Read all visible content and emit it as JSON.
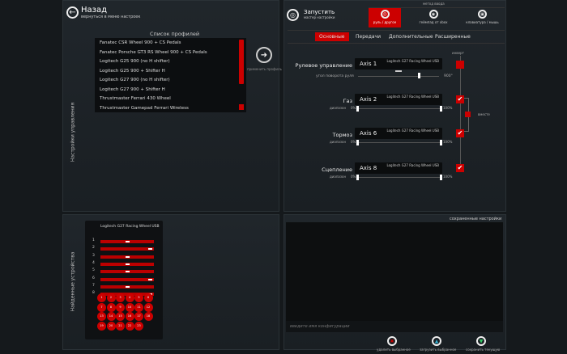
{
  "back": {
    "title": "Назад",
    "subtitle": "вернуться в меню настроек"
  },
  "profiles": {
    "title": "Список профилей",
    "items": [
      "Fanatec CSR Wheel 900 + CS Pedals",
      "Fanatec Porsche GT3 RS Wheel 900 + CS Pedals",
      "Logitech G25 900 (no H shifter)",
      "Logitech G25 900 + Shifter H",
      "Logitech G27 900 (no H shifter)",
      "Logitech G27 900 + Shifter H",
      "Thrustmaster Ferrari 430 Wheel",
      "Thrustmaster Gamepad Ferrari Wireless"
    ],
    "apply_label": "применить профиль"
  },
  "side_labels": {
    "controls": "Настройки управления",
    "devices": "Найденные устройства"
  },
  "wizard": {
    "title": "Запустить",
    "subtitle": "мастер настройки"
  },
  "input_method": {
    "label": "метод ввода",
    "options": [
      {
        "label": "руль / другое",
        "active": true
      },
      {
        "label": "геймпад от xbox",
        "active": false
      },
      {
        "label": "клавиатура / мышь",
        "active": false
      }
    ]
  },
  "tabs": [
    {
      "label": "Основные",
      "active": true
    },
    {
      "label": "Передачи"
    },
    {
      "label": "Дополнительные"
    },
    {
      "label": "Расширенные"
    }
  ],
  "controls": {
    "invert_label": "инверт",
    "together_label": "вместе",
    "device": "Logitech G27 Racing Wheel USB",
    "steering": {
      "label": "Рулевое управление",
      "axis": "Axis 1",
      "angle_label": "угол поворота руля",
      "angle": "900°"
    },
    "gas": {
      "label": "Газ",
      "axis": "Axis 2",
      "range_label": "диапазон",
      "min": "0%",
      "max": "100%"
    },
    "brake": {
      "label": "Тормоз",
      "axis": "Axis 6",
      "range_label": "диапазон",
      "min": "0%",
      "max": "100%"
    },
    "clutch": {
      "label": "Сцепление",
      "axis": "Axis 8",
      "range_label": "диапазон",
      "min": "0%",
      "max": "100%"
    }
  },
  "device_panel": {
    "title": "Logitech G27 Racing Wheel USB",
    "axes": [
      {
        "n": "1",
        "v": 0.5
      },
      {
        "n": "2",
        "v": 0.97
      },
      {
        "n": "3",
        "v": 0.5
      },
      {
        "n": "4",
        "v": 0.5
      },
      {
        "n": "5",
        "v": 0.5
      },
      {
        "n": "6",
        "v": 0.97
      },
      {
        "n": "7",
        "v": 0.5
      },
      {
        "n": "8",
        "v": 0.97
      }
    ],
    "buttons": [
      "1",
      "2",
      "3",
      "4",
      "5",
      "6",
      "7",
      "8",
      "9",
      "10",
      "11",
      "12",
      "13",
      "14",
      "15",
      "16",
      "17",
      "18",
      "19",
      "20",
      "21",
      "22",
      "23"
    ]
  },
  "saved": {
    "title": "сохраненные настройки",
    "placeholder": "введите имя конфигурации",
    "delete_label": "удалить выбранное",
    "load_label": "загрузить выбранное",
    "save_label": "сохранить текущую"
  },
  "colors": {
    "accent": "#cc0000",
    "panel": "#1e2428"
  }
}
